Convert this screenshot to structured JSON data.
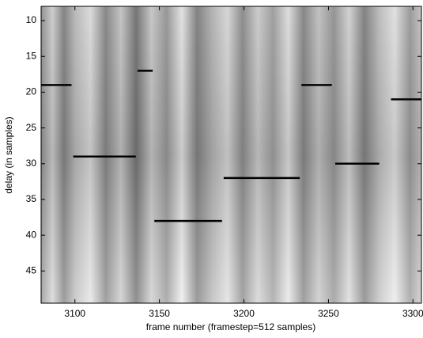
{
  "chart_data": {
    "type": "segments",
    "xlabel": "frame number (framestep=512 samples)",
    "ylabel": "delay (in samples)",
    "xlim": [
      3080,
      3305
    ],
    "ylim": [
      8,
      49.5
    ],
    "y_reversed": true,
    "xticks": [
      3100,
      3150,
      3200,
      3250,
      3300
    ],
    "yticks": [
      10,
      15,
      20,
      25,
      30,
      35,
      40,
      45
    ],
    "color": "#000000",
    "segments": [
      {
        "x": [
          3080,
          3098
        ],
        "y": 19
      },
      {
        "x": [
          3099,
          3136
        ],
        "y": 29
      },
      {
        "x": [
          3137,
          3146
        ],
        "y": 17
      },
      {
        "x": [
          3147,
          3187
        ],
        "y": 38
      },
      {
        "x": [
          3188,
          3233
        ],
        "y": 32
      },
      {
        "x": [
          3234,
          3252
        ],
        "y": 19
      },
      {
        "x": [
          3254,
          3280
        ],
        "y": 30
      },
      {
        "x": [
          3287,
          3305
        ],
        "y": 21
      }
    ]
  }
}
